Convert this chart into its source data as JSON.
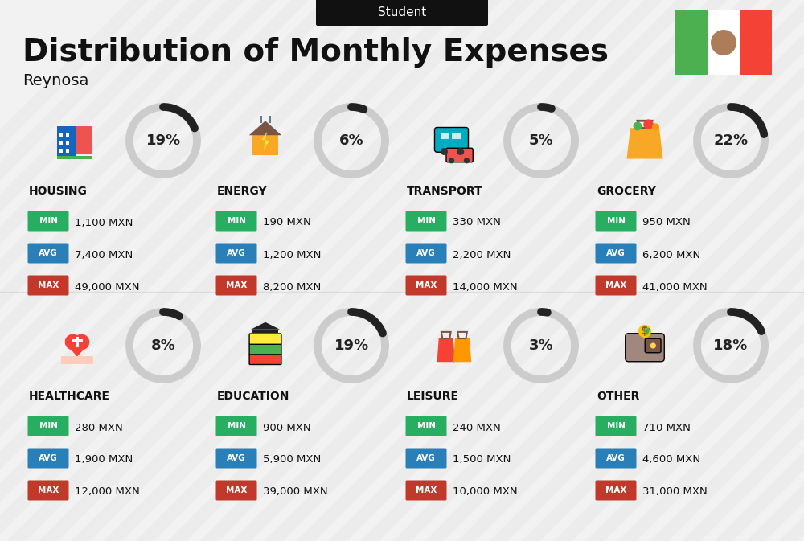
{
  "title": "Distribution of Monthly Expenses",
  "subtitle": "Student",
  "location": "Reynosa",
  "background_top": "#f0f0f0",
  "background_bottom": "#e8e8e8",
  "categories": [
    {
      "name": "HOUSING",
      "percent": 19,
      "icon": "housing",
      "min": "1,100 MXN",
      "avg": "7,400 MXN",
      "max": "49,000 MXN",
      "row": 0,
      "col": 0
    },
    {
      "name": "ENERGY",
      "percent": 6,
      "icon": "energy",
      "min": "190 MXN",
      "avg": "1,200 MXN",
      "max": "8,200 MXN",
      "row": 0,
      "col": 1
    },
    {
      "name": "TRANSPORT",
      "percent": 5,
      "icon": "transport",
      "min": "330 MXN",
      "avg": "2,200 MXN",
      "max": "14,000 MXN",
      "row": 0,
      "col": 2
    },
    {
      "name": "GROCERY",
      "percent": 22,
      "icon": "grocery",
      "min": "950 MXN",
      "avg": "6,200 MXN",
      "max": "41,000 MXN",
      "row": 0,
      "col": 3
    },
    {
      "name": "HEALTHCARE",
      "percent": 8,
      "icon": "healthcare",
      "min": "280 MXN",
      "avg": "1,900 MXN",
      "max": "12,000 MXN",
      "row": 1,
      "col": 0
    },
    {
      "name": "EDUCATION",
      "percent": 19,
      "icon": "education",
      "min": "900 MXN",
      "avg": "5,900 MXN",
      "max": "39,000 MXN",
      "row": 1,
      "col": 1
    },
    {
      "name": "LEISURE",
      "percent": 3,
      "icon": "leisure",
      "min": "240 MXN",
      "avg": "1,500 MXN",
      "max": "10,000 MXN",
      "row": 1,
      "col": 2
    },
    {
      "name": "OTHER",
      "percent": 18,
      "icon": "other",
      "min": "710 MXN",
      "avg": "4,600 MXN",
      "max": "31,000 MXN",
      "row": 1,
      "col": 3
    }
  ],
  "color_min": "#27ae60",
  "color_avg": "#2980b9",
  "color_max": "#c0392b",
  "arc_color": "#222222",
  "arc_bg_color": "#cccccc",
  "title_color": "#111111",
  "subtitle_bg": "#111111",
  "flag_green": "#4caf50",
  "flag_white": "#ffffff",
  "flag_red": "#f44336",
  "stripe_color": "#e0e0e0"
}
